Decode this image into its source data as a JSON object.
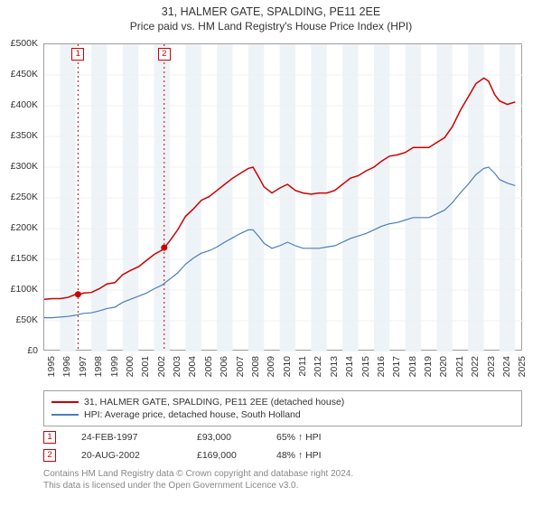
{
  "title_line1": "31, HALMER GATE, SPALDING, PE11 2EE",
  "title_line2": "Price paid vs. HM Land Registry's House Price Index (HPI)",
  "chart": {
    "type": "line",
    "background_color": "#ffffff",
    "plot_border_color": "#a0a0a0",
    "grid_color": "#f0f0f0",
    "band_color": "#eef3f7",
    "band_years": [
      1996,
      1998,
      2000,
      2002,
      2004,
      2006,
      2008,
      2010,
      2012,
      2014,
      2016,
      2018,
      2020,
      2022,
      2024
    ],
    "xlim": [
      1995,
      2025.5
    ],
    "ylim": [
      0,
      500000
    ],
    "ytick_step": 50000,
    "ytick_labels": [
      "£0",
      "£50K",
      "£100K",
      "£150K",
      "£200K",
      "£250K",
      "£300K",
      "£350K",
      "£400K",
      "£450K",
      "£500K"
    ],
    "xtick_step": 1,
    "xtick_labels": [
      "1995",
      "1996",
      "1997",
      "1998",
      "1999",
      "2000",
      "2001",
      "2002",
      "2003",
      "2004",
      "2005",
      "2006",
      "2007",
      "2008",
      "2009",
      "2010",
      "2011",
      "2012",
      "2013",
      "2014",
      "2015",
      "2016",
      "2017",
      "2018",
      "2019",
      "2020",
      "2021",
      "2022",
      "2023",
      "2024",
      "2025"
    ],
    "series": [
      {
        "name": "price_paid",
        "legend": "31, HALMER GATE, SPALDING, PE11 2EE (detached house)",
        "color": "#cc0000",
        "line_width": 1.5,
        "points": [
          [
            1995.0,
            85000
          ],
          [
            1995.5,
            86000
          ],
          [
            1996.0,
            86000
          ],
          [
            1996.5,
            88000
          ],
          [
            1997.0,
            93000
          ],
          [
            1997.2,
            93000
          ],
          [
            1997.5,
            95000
          ],
          [
            1998.0,
            96000
          ],
          [
            1998.5,
            102000
          ],
          [
            1999.0,
            110000
          ],
          [
            1999.5,
            112000
          ],
          [
            2000.0,
            125000
          ],
          [
            2000.5,
            132000
          ],
          [
            2001.0,
            138000
          ],
          [
            2001.5,
            148000
          ],
          [
            2002.0,
            158000
          ],
          [
            2002.5,
            165000
          ],
          [
            2002.65,
            169000
          ],
          [
            2003.0,
            180000
          ],
          [
            2003.5,
            198000
          ],
          [
            2004.0,
            220000
          ],
          [
            2004.5,
            232000
          ],
          [
            2005.0,
            246000
          ],
          [
            2005.5,
            252000
          ],
          [
            2006.0,
            262000
          ],
          [
            2006.5,
            272000
          ],
          [
            2007.0,
            282000
          ],
          [
            2007.5,
            290000
          ],
          [
            2008.0,
            298000
          ],
          [
            2008.3,
            300000
          ],
          [
            2008.7,
            282000
          ],
          [
            2009.0,
            268000
          ],
          [
            2009.5,
            258000
          ],
          [
            2010.0,
            266000
          ],
          [
            2010.5,
            272000
          ],
          [
            2011.0,
            262000
          ],
          [
            2011.5,
            258000
          ],
          [
            2012.0,
            256000
          ],
          [
            2012.5,
            258000
          ],
          [
            2013.0,
            258000
          ],
          [
            2013.5,
            262000
          ],
          [
            2014.0,
            272000
          ],
          [
            2014.5,
            282000
          ],
          [
            2015.0,
            286000
          ],
          [
            2015.5,
            294000
          ],
          [
            2016.0,
            300000
          ],
          [
            2016.5,
            310000
          ],
          [
            2017.0,
            318000
          ],
          [
            2017.5,
            320000
          ],
          [
            2018.0,
            324000
          ],
          [
            2018.5,
            332000
          ],
          [
            2019.0,
            332000
          ],
          [
            2019.5,
            332000
          ],
          [
            2020.0,
            340000
          ],
          [
            2020.5,
            348000
          ],
          [
            2021.0,
            366000
          ],
          [
            2021.5,
            392000
          ],
          [
            2022.0,
            414000
          ],
          [
            2022.5,
            436000
          ],
          [
            2023.0,
            445000
          ],
          [
            2023.3,
            440000
          ],
          [
            2023.7,
            418000
          ],
          [
            2024.0,
            408000
          ],
          [
            2024.5,
            402000
          ],
          [
            2025.0,
            406000
          ]
        ]
      },
      {
        "name": "hpi",
        "legend": "HPI: Average price, detached house, South Holland",
        "color": "#4a7ebb",
        "line_width": 1.2,
        "points": [
          [
            1995.0,
            55000
          ],
          [
            1995.5,
            55000
          ],
          [
            1996.0,
            56000
          ],
          [
            1996.5,
            57000
          ],
          [
            1997.0,
            59000
          ],
          [
            1997.5,
            62000
          ],
          [
            1998.0,
            63000
          ],
          [
            1998.5,
            66000
          ],
          [
            1999.0,
            70000
          ],
          [
            1999.5,
            72000
          ],
          [
            2000.0,
            80000
          ],
          [
            2000.5,
            85000
          ],
          [
            2001.0,
            90000
          ],
          [
            2001.5,
            95000
          ],
          [
            2002.0,
            102000
          ],
          [
            2002.5,
            108000
          ],
          [
            2003.0,
            118000
          ],
          [
            2003.5,
            128000
          ],
          [
            2004.0,
            142000
          ],
          [
            2004.5,
            152000
          ],
          [
            2005.0,
            160000
          ],
          [
            2005.5,
            164000
          ],
          [
            2006.0,
            170000
          ],
          [
            2006.5,
            178000
          ],
          [
            2007.0,
            185000
          ],
          [
            2007.5,
            192000
          ],
          [
            2008.0,
            198000
          ],
          [
            2008.3,
            198000
          ],
          [
            2008.7,
            186000
          ],
          [
            2009.0,
            176000
          ],
          [
            2009.5,
            168000
          ],
          [
            2010.0,
            172000
          ],
          [
            2010.5,
            178000
          ],
          [
            2011.0,
            172000
          ],
          [
            2011.5,
            168000
          ],
          [
            2012.0,
            168000
          ],
          [
            2012.5,
            168000
          ],
          [
            2013.0,
            170000
          ],
          [
            2013.5,
            172000
          ],
          [
            2014.0,
            178000
          ],
          [
            2014.5,
            184000
          ],
          [
            2015.0,
            188000
          ],
          [
            2015.5,
            192000
          ],
          [
            2016.0,
            198000
          ],
          [
            2016.5,
            204000
          ],
          [
            2017.0,
            208000
          ],
          [
            2017.5,
            210000
          ],
          [
            2018.0,
            214000
          ],
          [
            2018.5,
            218000
          ],
          [
            2019.0,
            218000
          ],
          [
            2019.5,
            218000
          ],
          [
            2020.0,
            224000
          ],
          [
            2020.5,
            230000
          ],
          [
            2021.0,
            242000
          ],
          [
            2021.5,
            258000
          ],
          [
            2022.0,
            272000
          ],
          [
            2022.5,
            288000
          ],
          [
            2023.0,
            298000
          ],
          [
            2023.3,
            300000
          ],
          [
            2023.7,
            290000
          ],
          [
            2024.0,
            280000
          ],
          [
            2024.5,
            274000
          ],
          [
            2025.0,
            270000
          ]
        ]
      }
    ],
    "sale_lines": [
      {
        "x": 1997.15,
        "color": "#cc0000",
        "dash": "2,3",
        "label": "1"
      },
      {
        "x": 2002.64,
        "color": "#cc0000",
        "dash": "2,3",
        "label": "2"
      }
    ],
    "sale_points": [
      {
        "x": 1997.15,
        "y": 93000,
        "color": "#cc0000",
        "r": 3.5
      },
      {
        "x": 2002.64,
        "y": 169000,
        "color": "#cc0000",
        "r": 3.5
      }
    ]
  },
  "sales": [
    {
      "marker": "1",
      "date": "24-FEB-1997",
      "price": "£93,000",
      "hpi": "65% ↑ HPI"
    },
    {
      "marker": "2",
      "date": "20-AUG-2002",
      "price": "£169,000",
      "hpi": "48% ↑ HPI"
    }
  ],
  "footer_line1": "Contains HM Land Registry data © Crown copyright and database right 2024.",
  "footer_line2": "This data is licensed under the Open Government Licence v3.0.",
  "legend_border_color": "#a0a0a0",
  "label_fontsize": 10.5
}
